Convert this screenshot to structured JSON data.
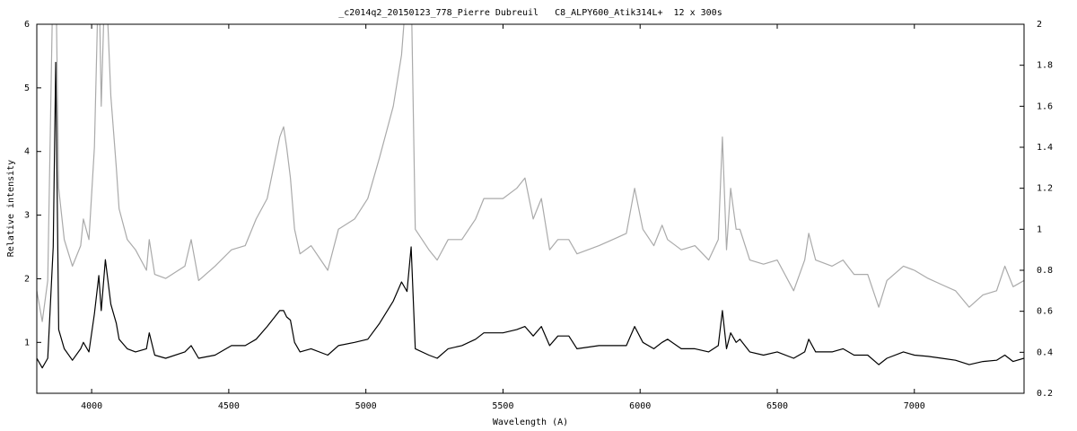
{
  "chart_data": {
    "type": "line",
    "title": "_c2014q2_20150123_778_Pierre Dubreuil   C8_ALPY600_Atik314L+  12 x 300s",
    "x_label": "Wavelength (A)",
    "y_label": "Relative intensity",
    "xlim": [
      3800,
      7400
    ],
    "xticks": [
      4000,
      4500,
      5000,
      5500,
      6000,
      6500,
      7000
    ],
    "ylim": [
      0.2,
      6
    ],
    "yticks": [
      1,
      2,
      3,
      4,
      5,
      6
    ],
    "y2lim": [
      0.2,
      2
    ],
    "y2ticks": [
      0.2,
      0.4,
      0.6,
      0.8,
      1,
      1.2,
      1.4,
      1.6,
      1.8,
      2
    ],
    "x": [
      3800,
      3820,
      3840,
      3860,
      3869,
      3880,
      3900,
      3930,
      3960,
      3970,
      3990,
      4010,
      4026,
      4035,
      4050,
      4070,
      4090,
      4100,
      4130,
      4160,
      4200,
      4210,
      4230,
      4270,
      4340,
      4363,
      4390,
      4450,
      4510,
      4560,
      4600,
      4640,
      4686,
      4700,
      4711,
      4725,
      4740,
      4760,
      4800,
      4861,
      4900,
      4959,
      5007,
      5050,
      5100,
      5130,
      5150,
      5165,
      5180,
      5230,
      5260,
      5300,
      5350,
      5400,
      5430,
      5500,
      5550,
      5580,
      5610,
      5640,
      5670,
      5700,
      5740,
      5770,
      5850,
      5900,
      5950,
      5980,
      6010,
      6050,
      6080,
      6100,
      6150,
      6200,
      6250,
      6285,
      6300,
      6315,
      6330,
      6350,
      6364,
      6400,
      6450,
      6500,
      6560,
      6600,
      6615,
      6640,
      6700,
      6740,
      6780,
      6830,
      6870,
      6900,
      6960,
      7000,
      7050,
      7100,
      7150,
      7200,
      7250,
      7300,
      7330,
      7360,
      7400
    ],
    "series": [
      {
        "color": "#aaaaaa",
        "axis": "y2",
        "values": [
          0.7,
          0.55,
          0.75,
          2.3,
          2.3,
          1.2,
          0.95,
          0.82,
          0.92,
          1.05,
          0.95,
          1.4,
          2.3,
          1.6,
          2.3,
          1.65,
          1.3,
          1.1,
          0.95,
          0.9,
          0.8,
          0.95,
          0.78,
          0.76,
          0.82,
          0.95,
          0.75,
          0.82,
          0.9,
          0.92,
          1.05,
          1.15,
          1.45,
          1.5,
          1.4,
          1.25,
          1.0,
          0.88,
          0.92,
          0.8,
          1.0,
          1.05,
          1.15,
          1.35,
          1.6,
          1.85,
          2.2,
          2.2,
          1.0,
          0.9,
          0.85,
          0.95,
          0.95,
          1.05,
          1.15,
          1.15,
          1.2,
          1.25,
          1.05,
          1.15,
          0.9,
          0.95,
          0.95,
          0.88,
          0.92,
          0.95,
          0.98,
          1.2,
          1.0,
          0.92,
          1.02,
          0.95,
          0.9,
          0.92,
          0.85,
          0.95,
          1.45,
          0.9,
          1.2,
          1.0,
          1.0,
          0.85,
          0.83,
          0.85,
          0.7,
          0.85,
          0.98,
          0.85,
          0.82,
          0.85,
          0.78,
          0.78,
          0.62,
          0.75,
          0.82,
          0.8,
          0.76,
          0.73,
          0.7,
          0.62,
          0.68,
          0.7,
          0.82,
          0.72,
          0.75
        ]
      },
      {
        "color": "#000000",
        "values": [
          0.75,
          0.6,
          0.75,
          2.5,
          5.4,
          1.2,
          0.9,
          0.72,
          0.9,
          1.0,
          0.85,
          1.45,
          2.05,
          1.5,
          2.3,
          1.6,
          1.3,
          1.05,
          0.9,
          0.85,
          0.9,
          1.15,
          0.8,
          0.75,
          0.85,
          0.95,
          0.75,
          0.8,
          0.95,
          0.95,
          1.05,
          1.25,
          1.5,
          1.5,
          1.4,
          1.35,
          1.0,
          0.85,
          0.9,
          0.8,
          0.95,
          1.0,
          1.05,
          1.3,
          1.65,
          1.95,
          1.8,
          2.5,
          0.9,
          0.8,
          0.75,
          0.9,
          0.95,
          1.05,
          1.15,
          1.15,
          1.2,
          1.25,
          1.1,
          1.25,
          0.95,
          1.1,
          1.1,
          0.9,
          0.95,
          0.95,
          0.95,
          1.25,
          1.0,
          0.9,
          1.0,
          1.05,
          0.9,
          0.9,
          0.85,
          0.95,
          1.5,
          0.9,
          1.15,
          1.0,
          1.05,
          0.85,
          0.8,
          0.85,
          0.75,
          0.85,
          1.05,
          0.85,
          0.85,
          0.9,
          0.8,
          0.8,
          0.65,
          0.75,
          0.85,
          0.8,
          0.78,
          0.75,
          0.72,
          0.65,
          0.7,
          0.72,
          0.8,
          0.7,
          0.75
        ]
      }
    ]
  }
}
